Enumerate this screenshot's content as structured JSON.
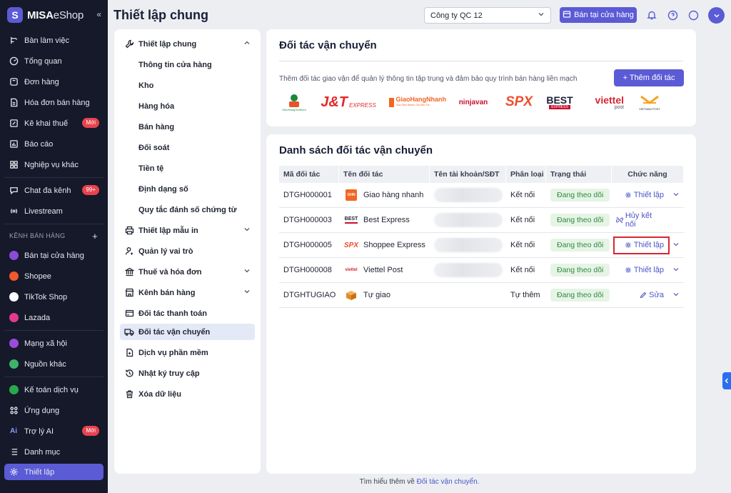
{
  "brand": {
    "name_bold": "MISA",
    "name_light": "eShop",
    "collapse": "«"
  },
  "sidebar": {
    "items_top": [
      {
        "label": "Bàn làm việc",
        "icon": "workflow-icon"
      },
      {
        "label": "Tổng quan",
        "icon": "gauge-icon"
      },
      {
        "label": "Đơn hàng",
        "icon": "order-icon"
      },
      {
        "label": "Hóa đơn bán hàng",
        "icon": "invoice-icon"
      },
      {
        "label": "Kê khai thuế",
        "icon": "tax-icon",
        "badge": "Mới"
      },
      {
        "label": "Báo cáo",
        "icon": "report-icon"
      },
      {
        "label": "Nghiệp vụ khác",
        "icon": "grid-icon"
      }
    ],
    "items_mid": [
      {
        "label": "Chat đa kênh",
        "icon": "chat-icon",
        "badge": "99+"
      },
      {
        "label": "Livestream",
        "icon": "livestream-icon"
      }
    ],
    "section_label": "KÊNH BÁN HÀNG",
    "section_add": "+",
    "channels": [
      {
        "label": "Bán tại cửa hàng",
        "color": "#8a4bd9"
      },
      {
        "label": "Shopee",
        "color": "#f1582c"
      },
      {
        "label": "TikTok Shop",
        "color": "#ffffff"
      },
      {
        "label": "Lazada",
        "color": "#e23a8c"
      }
    ],
    "social": [
      {
        "label": "Mạng xã hội",
        "color": "#9b4bd9"
      },
      {
        "label": "Nguồn khác",
        "color": "#3db36a"
      }
    ],
    "items_bottom": [
      {
        "label": "Kế toán dịch vụ",
        "icon": "accounting-icon"
      },
      {
        "label": "Ứng dụng",
        "icon": "apps-icon"
      },
      {
        "label": "Trợ lý AI",
        "icon": "ai-icon",
        "badge": "Mới"
      },
      {
        "label": "Danh mục",
        "icon": "list-icon"
      },
      {
        "label": "Thiết lập",
        "icon": "gear-icon",
        "active": true
      }
    ]
  },
  "header": {
    "title": "Thiết lập chung",
    "company": "Công ty QC 12",
    "store_button": "Bán tại cửa hàng"
  },
  "settings_menu": {
    "group_general": "Thiết lập chung",
    "general_items": [
      "Thông tin cửa hàng",
      "Kho",
      "Hàng hóa",
      "Bán hàng",
      "Đối soát",
      "Tiền tệ",
      "Định dạng số",
      "Quy tắc đánh số chứng từ"
    ],
    "items": [
      {
        "label": "Thiết lập mẫu in",
        "icon": "printer-icon",
        "chevron": true
      },
      {
        "label": "Quản lý vai trò",
        "icon": "user-role-icon"
      },
      {
        "label": "Thuế và hóa đơn",
        "icon": "bank-icon",
        "chevron": true
      },
      {
        "label": "Kênh bán hàng",
        "icon": "store-icon",
        "chevron": true
      },
      {
        "label": "Đối tác thanh toán",
        "icon": "card-icon"
      },
      {
        "label": "Đối tác vận chuyển",
        "icon": "truck-icon",
        "active": true
      },
      {
        "label": "Dịch vụ phần mềm",
        "icon": "file-icon"
      },
      {
        "label": "Nhật ký truy cập",
        "icon": "history-icon"
      },
      {
        "label": "Xóa dữ liệu",
        "icon": "trash-icon"
      }
    ]
  },
  "partners_card": {
    "title": "Đối tác vận chuyển",
    "description": "Thêm đối tác giao vận để quản lý thông tin tập trung và đảm bảo quy trình bán hàng liền mạch",
    "add_button": "+ Thêm đối tác",
    "logos": {
      "ghtk": "GiaoHangTietKiem",
      "jt": "J&T",
      "jt_sub": "EXPRESS",
      "ghn": "GiaoHangNhanh",
      "ghn_sub": "Giao Siêu Nhanh Giá Siêu Tốt",
      "ninjavan": "ninjavan",
      "spx": "SPX",
      "best": "BEST",
      "best_sub": "EXPRESS",
      "viettel": "viettel",
      "viettel_sub": "post",
      "vnpost": "VIETNAM POST"
    }
  },
  "list_card": {
    "title": "Danh sách đối tác vận chuyển",
    "columns": [
      "Mã đối tác",
      "Tên đối tác",
      "Tên tài khoản/SĐT",
      "Phân loại",
      "Trạng thái",
      "Chức năng"
    ],
    "rows": [
      {
        "code": "DTGH000001",
        "name": "Giao hàng nhanh",
        "type": "Kết nối",
        "status": "Đang theo dõi",
        "action": "Thiết lập",
        "action_icon": "gear-icon",
        "logo": "GHN"
      },
      {
        "code": "DTGH000003",
        "name": "Best Express",
        "type": "Kết nối",
        "status": "Đang theo dõi",
        "action": "Hủy kết nối",
        "action_icon": "unlink-icon",
        "logo": "BEST"
      },
      {
        "code": "DTGH000005",
        "name": "Shoppee Express",
        "type": "Kết nối",
        "status": "Đang theo dõi",
        "action": "Thiết lập",
        "action_icon": "gear-icon",
        "logo": "SPX"
      },
      {
        "code": "DTGH000008",
        "name": "Viettel Post",
        "type": "Kết nối",
        "status": "Đang theo dõi",
        "action": "Thiết lập",
        "action_icon": "gear-icon",
        "logo": "viettel"
      },
      {
        "code": "DTGHTUGIAO",
        "name": "Tự giao",
        "type": "Tự thêm",
        "status": "Đang theo dõi",
        "action": "Sửa",
        "action_icon": "edit-icon",
        "logo": "box"
      }
    ]
  },
  "footer": {
    "text": "Tìm hiểu thêm về",
    "link": "Đối tác vận chuyển."
  },
  "colors": {
    "accent": "#5b5bd6",
    "sidebar_bg": "#15192a",
    "status_green": "#2f8a3e",
    "highlight": "#d9262f"
  }
}
